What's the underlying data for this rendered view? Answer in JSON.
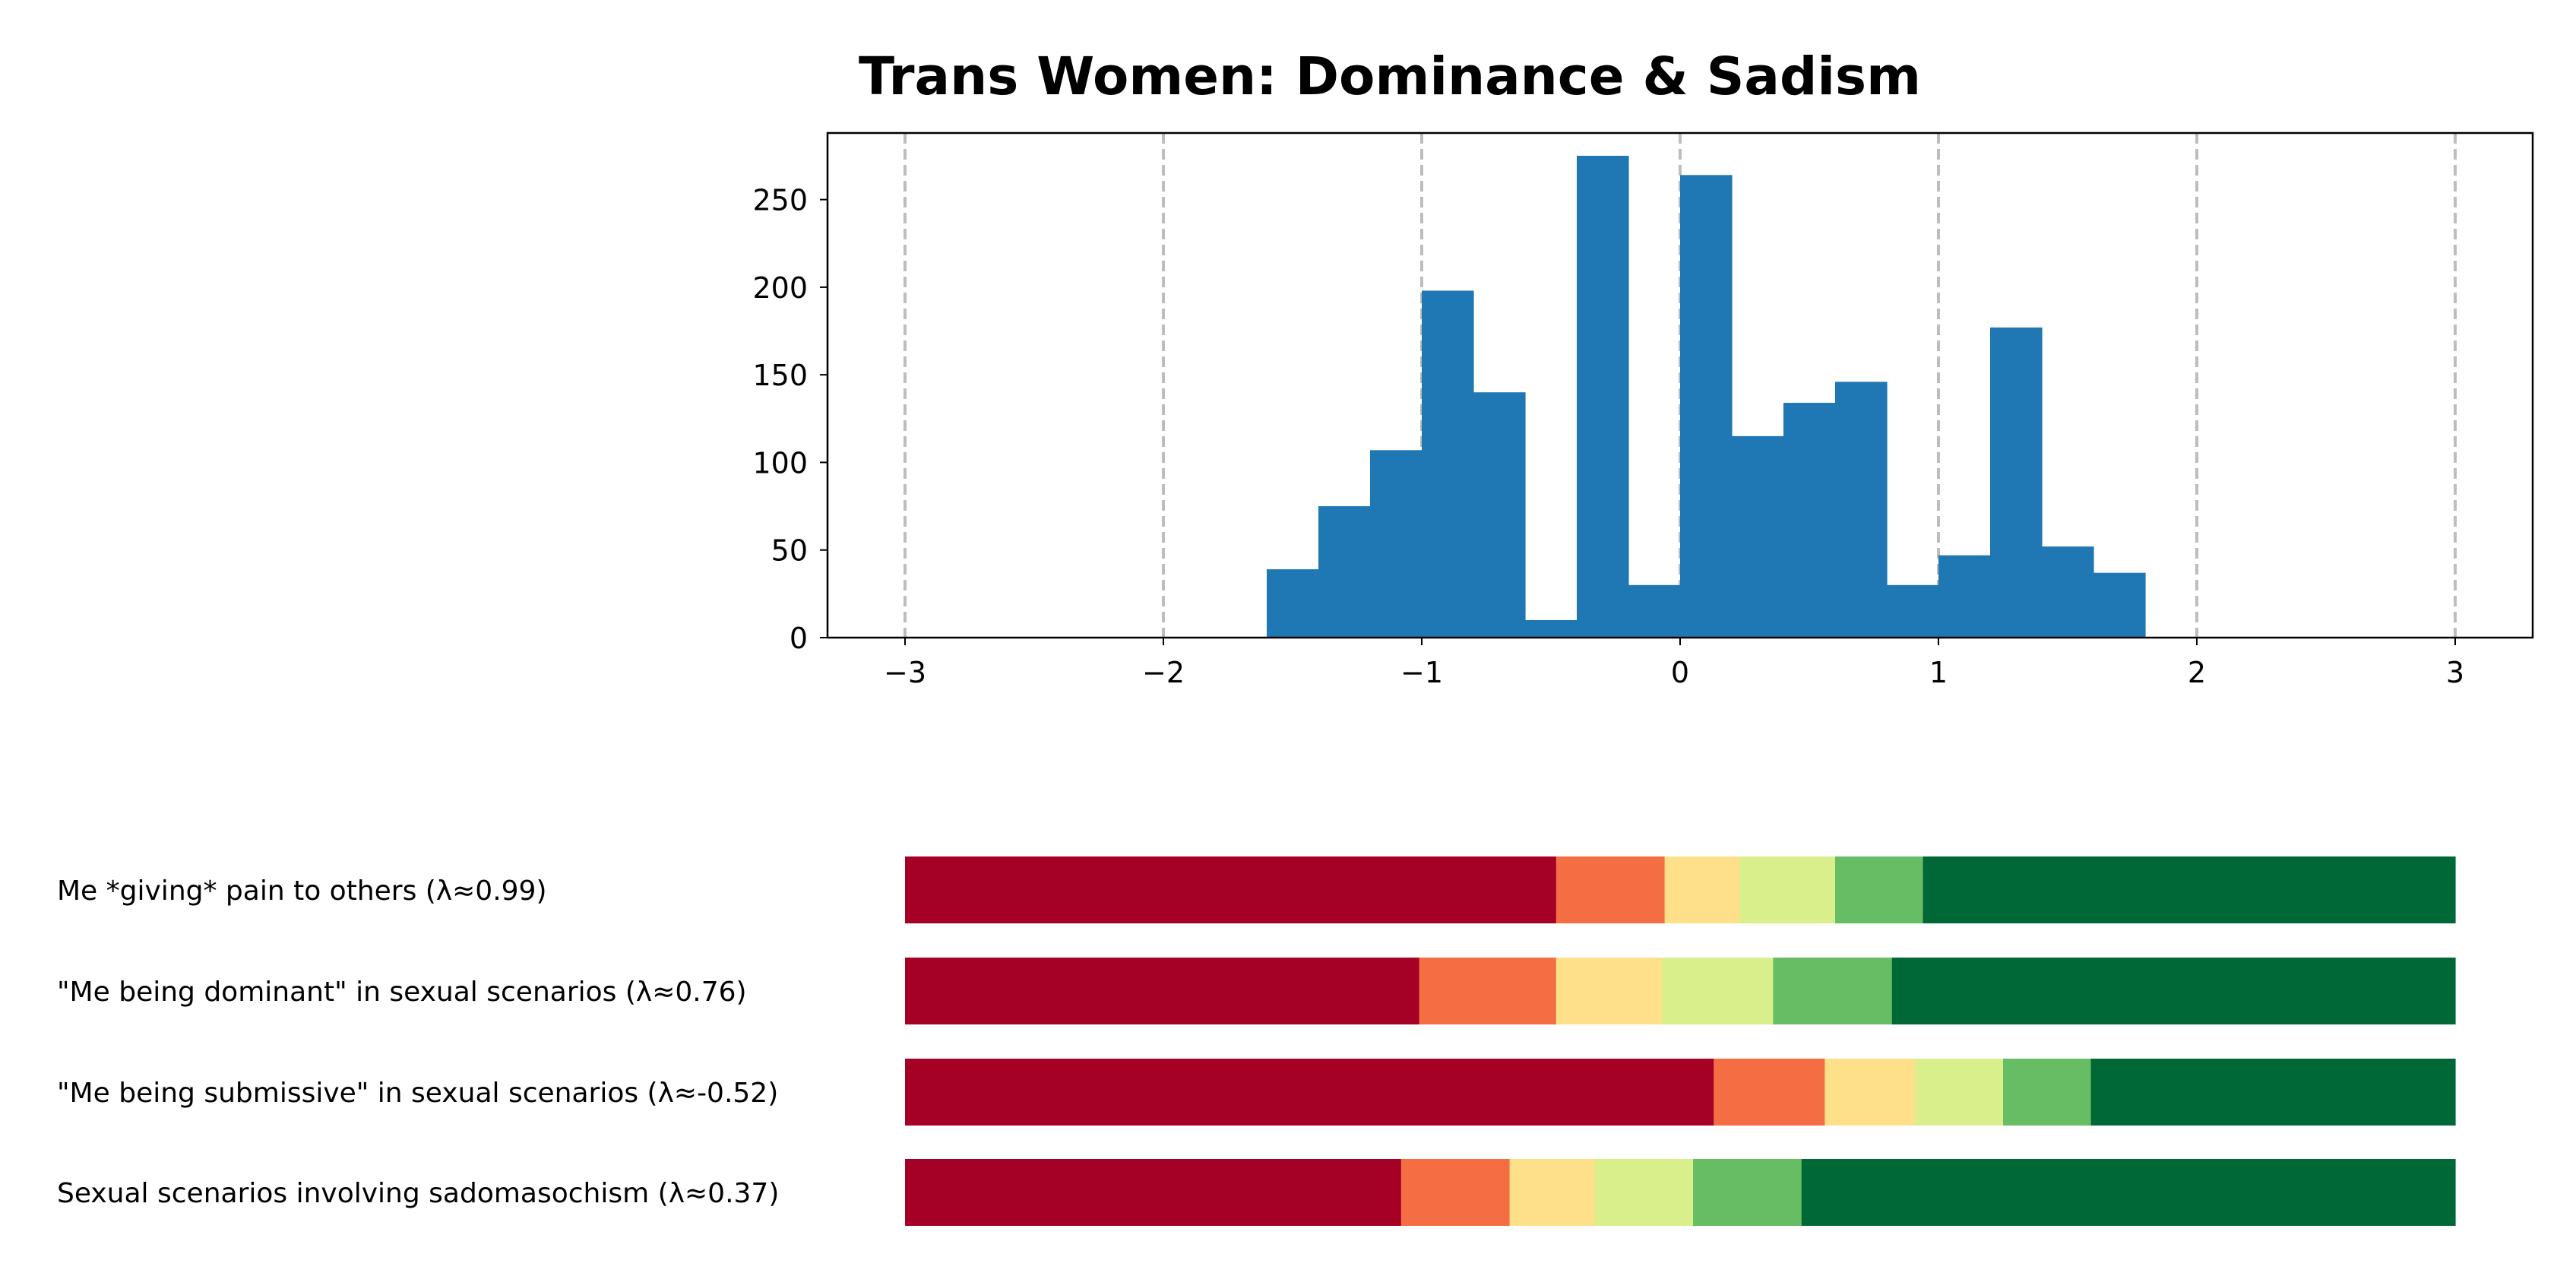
{
  "chart_data": [
    {
      "type": "bar",
      "title": "Trans Women: Dominance & Sadism",
      "xlabel": "",
      "ylabel": "",
      "xlim": [
        -3.3,
        3.3
      ],
      "ylim": [
        0,
        288
      ],
      "xticks": [
        -3,
        -2,
        -1,
        0,
        1,
        2,
        3
      ],
      "xtick_labels": [
        "−3",
        "−2",
        "−1",
        "0",
        "1",
        "2",
        "3"
      ],
      "yticks": [
        0,
        50,
        100,
        150,
        200,
        250
      ],
      "ytick_labels": [
        "0",
        "50",
        "100",
        "150",
        "200",
        "250"
      ],
      "grid": "x-dashed",
      "bin_width": 0.2,
      "bin_starts": [
        -1.6,
        -1.4,
        -1.2,
        -1.0,
        -0.8,
        -0.6,
        -0.4,
        -0.2,
        0.0,
        0.2,
        0.4,
        0.6,
        0.8,
        1.0,
        1.2,
        1.4,
        1.6
      ],
      "values": [
        39,
        75,
        107,
        198,
        140,
        10,
        275,
        30,
        264,
        115,
        134,
        146,
        30,
        47,
        177,
        52,
        37
      ],
      "bar_color": "#1f77b4"
    },
    {
      "type": "bar",
      "orientation": "horizontal-stacked",
      "xlim": [
        -3.3,
        3.3
      ],
      "range": [
        -3,
        3
      ],
      "colors": [
        "#a50026",
        "#f46d43",
        "#fee08b",
        "#d9ef8b",
        "#66bd63",
        "#006837"
      ],
      "rows": [
        {
          "label": "Me *giving* pain to others (λ≈0.99)",
          "segments": [
            2.52,
            0.42,
            0.29,
            0.37,
            0.34,
            2.06
          ]
        },
        {
          "label": "\"Me being dominant\" in sexual scenarios (λ≈0.76)",
          "segments": [
            1.99,
            0.53,
            0.41,
            0.43,
            0.46,
            2.18
          ]
        },
        {
          "label": "\"Me being submissive\" in sexual scenarios (λ≈-0.52)",
          "segments": [
            3.13,
            0.43,
            0.35,
            0.34,
            0.34,
            1.41
          ]
        },
        {
          "label": "Sexual scenarios involving sadomasochism (λ≈0.37)",
          "segments": [
            1.92,
            0.42,
            0.33,
            0.38,
            0.42,
            2.53
          ]
        }
      ]
    }
  ]
}
